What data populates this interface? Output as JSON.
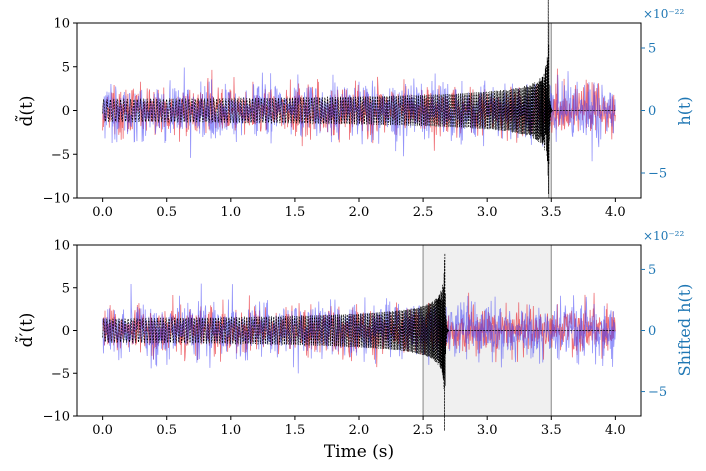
{
  "colors": {
    "noise_red": "#e8303a",
    "noise_blue": "#3d3df5",
    "signal": "#000000",
    "right_axis": "#1f77b4",
    "shade": "#d9d9d9",
    "window_edge": "#999999"
  },
  "chart_data": [
    {
      "type": "line",
      "ylabel": "d̃(t)",
      "right_ylabel": "h(t)",
      "right_multiplier": "×10⁻²²",
      "x_ticks": [
        "0.0",
        "0.5",
        "1.0",
        "1.5",
        "2.0",
        "2.5",
        "3.0",
        "3.5",
        "4.0"
      ],
      "y_ticks": [
        "−10",
        "−5",
        "0",
        "5",
        "10"
      ],
      "right_y_ticks": [
        "−5",
        "0",
        "5"
      ],
      "xlim": [
        -0.2,
        4.2
      ],
      "ylim": [
        -10,
        10
      ],
      "right_ylim": [
        -7,
        7
      ],
      "series": [
        {
          "kind": "noise-red",
          "x_range": [
            0.0,
            4.0
          ],
          "amplitude_std": 1.4
        },
        {
          "kind": "noise-blue",
          "x_range": [
            0.0,
            4.0
          ],
          "amplitude_std": 1.6
        },
        {
          "kind": "chirp",
          "x_range": [
            0.0,
            3.5
          ],
          "merger_time": 3.48,
          "peak_amplitude": 9.0
        }
      ],
      "shaded_windows": [
        [
          3.48,
          3.5
        ]
      ]
    },
    {
      "type": "line",
      "xlabel": "Time (s)",
      "ylabel": "d̃′(t)",
      "right_ylabel": "Shifted h(t)",
      "right_multiplier": "×10⁻²²",
      "x_ticks": [
        "0.0",
        "0.5",
        "1.0",
        "1.5",
        "2.0",
        "2.5",
        "3.0",
        "3.5",
        "4.0"
      ],
      "y_ticks": [
        "−10",
        "−5",
        "0",
        "5",
        "10"
      ],
      "right_y_ticks": [
        "−5",
        "0",
        "5"
      ],
      "xlim": [
        -0.2,
        4.2
      ],
      "ylim": [
        -10,
        10
      ],
      "right_ylim": [
        -7,
        7
      ],
      "series": [
        {
          "kind": "noise-red",
          "x_range": [
            0.0,
            4.0
          ],
          "amplitude_std": 1.4
        },
        {
          "kind": "noise-blue",
          "x_range": [
            0.0,
            4.0
          ],
          "amplitude_std": 1.6
        },
        {
          "kind": "chirp",
          "x_range": [
            0.0,
            2.7
          ],
          "merger_time": 2.67,
          "peak_amplitude": 9.0
        }
      ],
      "shaded_windows": [
        [
          2.5,
          3.5
        ]
      ]
    }
  ]
}
